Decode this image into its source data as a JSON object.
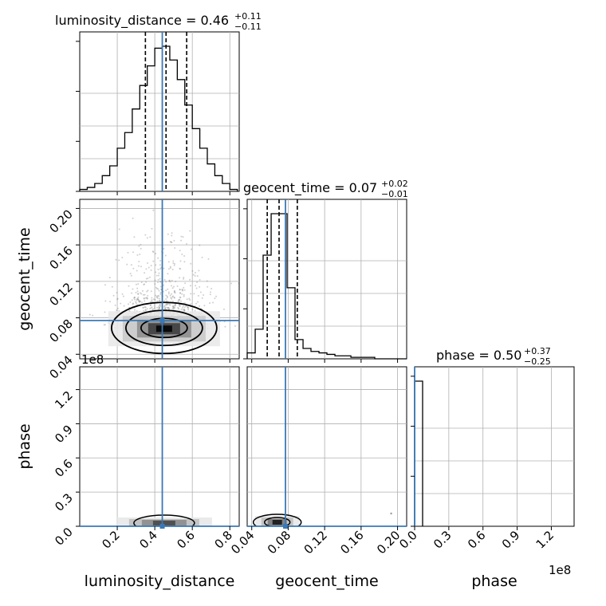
{
  "chart_data": {
    "type": "corner",
    "parameters": [
      "luminosity_distance",
      "geocent_time",
      "phase"
    ],
    "axis_labels": {
      "luminosity_distance": "luminosity_distance",
      "geocent_time": "geocent_time",
      "phase": "phase"
    },
    "titles": [
      {
        "param": "luminosity_distance",
        "text": "luminosity_distance = 0.46",
        "upper": "+0.11",
        "lower": "−0.11"
      },
      {
        "param": "geocent_time",
        "text": "geocent_time = 0.07",
        "upper": "+0.02",
        "lower": "−0.01"
      },
      {
        "param": "phase",
        "text": "phase = 0.50",
        "upper": "+0.37",
        "lower": "−0.25"
      }
    ],
    "ranges": {
      "luminosity_distance": [
        0.0,
        0.85
      ],
      "geocent_time": [
        0.035,
        0.21
      ],
      "phase": [
        0.0,
        140000000.0
      ]
    },
    "ticks": {
      "luminosity_distance": {
        "values": [
          0.2,
          0.4,
          0.6,
          0.8
        ],
        "labels": [
          "0.2",
          "0.4",
          "0.6",
          "0.8"
        ]
      },
      "geocent_time": {
        "values": [
          0.04,
          0.08,
          0.12,
          0.16,
          0.2
        ],
        "labels": [
          "0.04",
          "0.08",
          "0.12",
          "0.16",
          "0.20"
        ]
      },
      "phase": {
        "values": [
          0.0,
          30000000.0,
          60000000.0,
          90000000.0,
          120000000.0
        ],
        "labels": [
          "0.0",
          "0.3",
          "0.6",
          "0.9",
          "1.2"
        ],
        "offset_text": "1e8"
      }
    },
    "truths": {
      "luminosity_distance": 0.44,
      "geocent_time": 0.077,
      "phase": 0.0
    },
    "quantiles": {
      "luminosity_distance": [
        0.35,
        0.46,
        0.57
      ],
      "geocent_time": [
        0.057,
        0.07,
        0.09
      ]
    },
    "histograms": {
      "luminosity_distance": {
        "edges": [
          0.0,
          0.04,
          0.08,
          0.12,
          0.16,
          0.2,
          0.24,
          0.28,
          0.32,
          0.36,
          0.4,
          0.44,
          0.48,
          0.52,
          0.56,
          0.6,
          0.64,
          0.68,
          0.72,
          0.76,
          0.8,
          0.84
        ],
        "counts": [
          1,
          2,
          4,
          8,
          13,
          22,
          30,
          42,
          54,
          64,
          73,
          74,
          67,
          57,
          44,
          32,
          22,
          14,
          8,
          4,
          1
        ]
      },
      "geocent_time": {
        "edges": [
          0.035,
          0.0438,
          0.0525,
          0.0613,
          0.07,
          0.0788,
          0.0875,
          0.0963,
          0.105,
          0.1138,
          0.1225,
          0.1313,
          0.14,
          0.1488,
          0.1575,
          0.1663,
          0.175,
          0.1838,
          0.1925,
          0.2013,
          0.21
        ],
        "counts": [
          4,
          20,
          70,
          98,
          98,
          48,
          13,
          7,
          5,
          4,
          3,
          2,
          2,
          1,
          1,
          1,
          0,
          0,
          0,
          0
        ]
      },
      "phase": {
        "edges": [
          0.0,
          7000000.0
        ],
        "counts": [
          100
        ]
      }
    },
    "grid": true
  }
}
